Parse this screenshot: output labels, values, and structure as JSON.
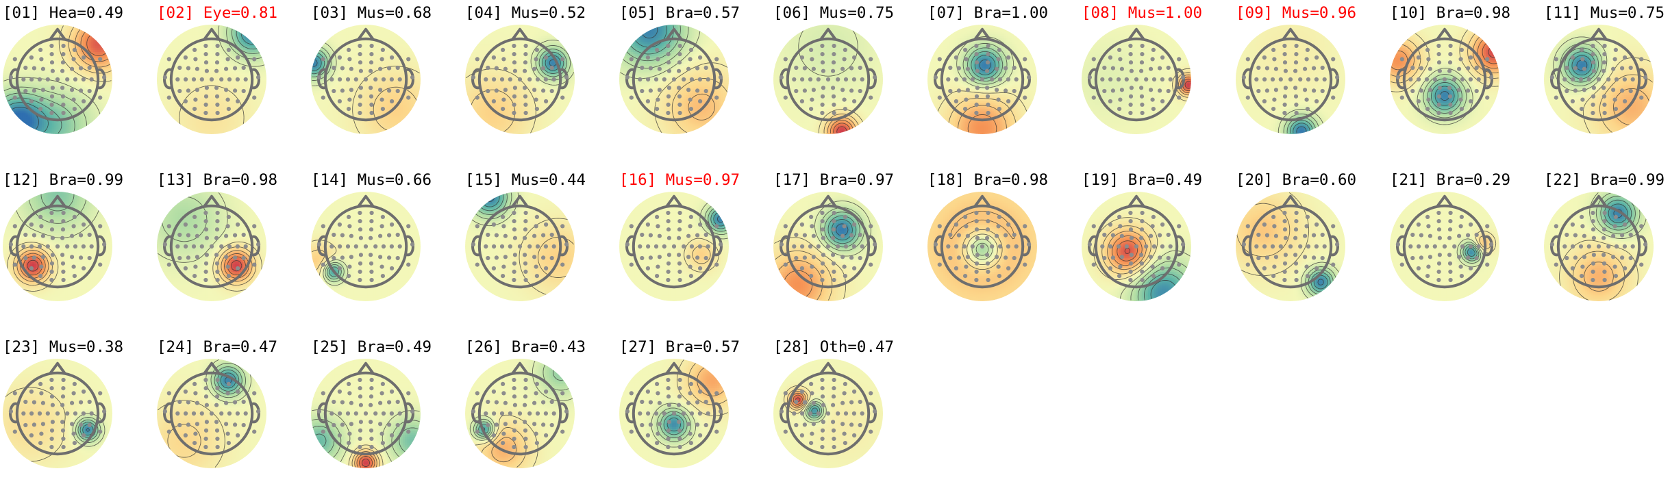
{
  "colors": {
    "title_default": "#000000",
    "title_flagged": "#ff0000",
    "colormap": [
      "#2f6fb0",
      "#5ab3a6",
      "#b3dea5",
      "#f3f7b9",
      "#fcd68a",
      "#f58f52",
      "#c9304a"
    ]
  },
  "chart_data": {
    "type": "topomap-grid",
    "series": [
      {
        "index": "01",
        "label": "Hea",
        "value": 0.49,
        "title": "[01] Hea=0.49",
        "flagged": false,
        "blobs": [
          {
            "sign": 1,
            "x": 0.75,
            "y": -0.65,
            "s": 0.35,
            "a": 0.85
          },
          {
            "sign": -1,
            "x": -0.75,
            "y": 0.75,
            "s": 0.35,
            "a": 0.95
          },
          {
            "sign": -1,
            "x": 0.0,
            "y": 0.85,
            "s": 0.45,
            "a": 0.5
          }
        ]
      },
      {
        "index": "02",
        "label": "Eye",
        "value": 0.81,
        "title": "[02] Eye=0.81",
        "flagged": true,
        "blobs": [
          {
            "sign": -1,
            "x": 0.75,
            "y": -0.85,
            "s": 0.3,
            "a": 0.9
          },
          {
            "sign": 1,
            "x": 0.0,
            "y": 0.7,
            "s": 0.5,
            "a": 0.2
          }
        ]
      },
      {
        "index": "03",
        "label": "Mus",
        "value": 0.68,
        "title": "[03] Mus=0.68",
        "flagged": false,
        "blobs": [
          {
            "sign": -1,
            "x": -0.95,
            "y": -0.3,
            "s": 0.2,
            "a": 0.9
          },
          {
            "sign": 1,
            "x": 0.55,
            "y": 0.55,
            "s": 0.5,
            "a": 0.35
          }
        ]
      },
      {
        "index": "04",
        "label": "Mus",
        "value": 0.52,
        "title": "[04] Mus=0.52",
        "flagged": false,
        "blobs": [
          {
            "sign": -1,
            "x": 0.6,
            "y": -0.3,
            "s": 0.2,
            "a": 0.9
          },
          {
            "sign": 1,
            "x": -0.5,
            "y": 0.6,
            "s": 0.5,
            "a": 0.35
          }
        ]
      },
      {
        "index": "05",
        "label": "Bra",
        "value": 0.57,
        "title": "[05] Bra=0.57",
        "flagged": false,
        "blobs": [
          {
            "sign": -1,
            "x": -0.45,
            "y": -0.9,
            "s": 0.45,
            "a": 0.9
          },
          {
            "sign": 1,
            "x": 0.5,
            "y": 0.5,
            "s": 0.5,
            "a": 0.45
          }
        ]
      },
      {
        "index": "06",
        "label": "Mus",
        "value": 0.75,
        "title": "[06] Mus=0.75",
        "flagged": false,
        "blobs": [
          {
            "sign": 1,
            "x": 0.25,
            "y": 0.95,
            "s": 0.2,
            "a": 0.95
          },
          {
            "sign": -1,
            "x": 0.0,
            "y": -0.6,
            "s": 0.6,
            "a": 0.15
          }
        ]
      },
      {
        "index": "07",
        "label": "Bra",
        "value": 1.0,
        "title": "[07] Bra=1.00",
        "flagged": false,
        "blobs": [
          {
            "sign": -1,
            "x": 0.05,
            "y": -0.25,
            "s": 0.25,
            "a": 0.95
          },
          {
            "sign": 1,
            "x": 0.0,
            "y": 0.9,
            "s": 0.45,
            "a": 0.65
          }
        ]
      },
      {
        "index": "08",
        "label": "Mus",
        "value": 1.0,
        "title": "[08] Mus=1.00",
        "flagged": true,
        "blobs": [
          {
            "sign": 1,
            "x": 0.95,
            "y": 0.1,
            "s": 0.14,
            "a": 0.95
          },
          {
            "sign": -1,
            "x": -0.5,
            "y": 0.0,
            "s": 0.5,
            "a": 0.1
          }
        ]
      },
      {
        "index": "09",
        "label": "Mus",
        "value": 0.96,
        "title": "[09] Mus=0.96",
        "flagged": true,
        "blobs": [
          {
            "sign": -1,
            "x": 0.2,
            "y": 0.95,
            "s": 0.2,
            "a": 0.95
          },
          {
            "sign": 1,
            "x": 0.0,
            "y": -0.5,
            "s": 0.6,
            "a": 0.1
          }
        ]
      },
      {
        "index": "10",
        "label": "Bra",
        "value": 0.98,
        "title": "[10] Bra=0.98",
        "flagged": false,
        "blobs": [
          {
            "sign": -1,
            "x": 0.0,
            "y": 0.3,
            "s": 0.25,
            "a": 0.9
          },
          {
            "sign": 1,
            "x": 0.9,
            "y": -0.5,
            "s": 0.3,
            "a": 0.9
          },
          {
            "sign": 1,
            "x": -0.85,
            "y": -0.35,
            "s": 0.3,
            "a": 0.65
          }
        ]
      },
      {
        "index": "11",
        "label": "Mus",
        "value": 0.75,
        "title": "[11] Mus=0.75",
        "flagged": false,
        "blobs": [
          {
            "sign": -1,
            "x": -0.3,
            "y": -0.25,
            "s": 0.25,
            "a": 0.95
          },
          {
            "sign": 1,
            "x": 0.6,
            "y": 0.5,
            "s": 0.5,
            "a": 0.5
          }
        ]
      },
      {
        "index": "12",
        "label": "Bra",
        "value": 0.99,
        "title": "[12] Bra=0.99",
        "flagged": false,
        "blobs": [
          {
            "sign": 1,
            "x": -0.45,
            "y": 0.35,
            "s": 0.22,
            "a": 0.95
          },
          {
            "sign": -1,
            "x": 0.0,
            "y": -0.95,
            "s": 0.45,
            "a": 0.5
          }
        ]
      },
      {
        "index": "13",
        "label": "Bra",
        "value": 0.98,
        "title": "[13] Bra=0.98",
        "flagged": false,
        "blobs": [
          {
            "sign": 1,
            "x": 0.45,
            "y": 0.35,
            "s": 0.22,
            "a": 0.95
          },
          {
            "sign": -1,
            "x": -0.5,
            "y": -0.5,
            "s": 0.5,
            "a": 0.35
          }
        ]
      },
      {
        "index": "14",
        "label": "Mus",
        "value": 0.66,
        "title": "[14] Mus=0.66",
        "flagged": false,
        "blobs": [
          {
            "sign": -1,
            "x": -0.6,
            "y": 0.45,
            "s": 0.14,
            "a": 0.9
          },
          {
            "sign": 1,
            "x": -0.85,
            "y": 0.3,
            "s": 0.25,
            "a": 0.4
          }
        ]
      },
      {
        "index": "15",
        "label": "Mus",
        "value": 0.44,
        "title": "[15] Mus=0.44",
        "flagged": false,
        "blobs": [
          {
            "sign": -1,
            "x": -0.55,
            "y": -0.9,
            "s": 0.25,
            "a": 0.9
          },
          {
            "sign": 1,
            "x": 0.7,
            "y": 0.2,
            "s": 0.45,
            "a": 0.35
          }
        ]
      },
      {
        "index": "16",
        "label": "Mus",
        "value": 0.97,
        "title": "[16] Mus=0.97",
        "flagged": true,
        "blobs": [
          {
            "sign": -1,
            "x": 0.85,
            "y": -0.5,
            "s": 0.18,
            "a": 0.9
          },
          {
            "sign": 1,
            "x": 0.5,
            "y": 0.15,
            "s": 0.2,
            "a": 0.35
          }
        ]
      },
      {
        "index": "17",
        "label": "Bra",
        "value": 0.97,
        "title": "[17] Bra=0.97",
        "flagged": false,
        "blobs": [
          {
            "sign": -1,
            "x": 0.25,
            "y": -0.3,
            "s": 0.25,
            "a": 0.95
          },
          {
            "sign": 1,
            "x": -0.55,
            "y": 0.7,
            "s": 0.45,
            "a": 0.65
          }
        ]
      },
      {
        "index": "18",
        "label": "Bra",
        "value": 0.98,
        "title": "[18] Bra=0.98",
        "flagged": false,
        "blobs": [
          {
            "sign": -1,
            "x": 0.0,
            "y": 0.05,
            "s": 0.22,
            "a": 0.85
          },
          {
            "sign": 1,
            "x": 0.0,
            "y": 0.0,
            "s": 1.0,
            "a": 0.5
          }
        ]
      },
      {
        "index": "19",
        "label": "Bra",
        "value": 0.49,
        "title": "[19] Bra=0.49",
        "flagged": false,
        "blobs": [
          {
            "sign": 1,
            "x": -0.15,
            "y": 0.1,
            "s": 0.3,
            "a": 0.9
          },
          {
            "sign": -1,
            "x": 0.5,
            "y": 0.85,
            "s": 0.4,
            "a": 0.85
          }
        ]
      },
      {
        "index": "20",
        "label": "Bra",
        "value": 0.6,
        "title": "[20] Bra=0.60",
        "flagged": false,
        "blobs": [
          {
            "sign": -1,
            "x": 0.55,
            "y": 0.65,
            "s": 0.18,
            "a": 0.9
          },
          {
            "sign": 1,
            "x": -0.5,
            "y": -0.3,
            "s": 0.5,
            "a": 0.4
          }
        ]
      },
      {
        "index": "21",
        "label": "Bra",
        "value": 0.29,
        "title": "[21] Bra=0.29",
        "flagged": false,
        "blobs": [
          {
            "sign": -1,
            "x": 0.5,
            "y": 0.1,
            "s": 0.13,
            "a": 0.9
          },
          {
            "sign": 1,
            "x": 0.7,
            "y": -0.05,
            "s": 0.13,
            "a": 0.5
          }
        ]
      },
      {
        "index": "22",
        "label": "Bra",
        "value": 0.99,
        "title": "[22] Bra=0.99",
        "flagged": false,
        "blobs": [
          {
            "sign": -1,
            "x": 0.35,
            "y": -0.6,
            "s": 0.25,
            "a": 0.9
          },
          {
            "sign": 1,
            "x": 0.0,
            "y": 0.55,
            "s": 0.4,
            "a": 0.5
          }
        ]
      },
      {
        "index": "23",
        "label": "Mus",
        "value": 0.38,
        "title": "[23] Mus=0.38",
        "flagged": false,
        "blobs": [
          {
            "sign": -1,
            "x": 0.55,
            "y": 0.3,
            "s": 0.15,
            "a": 0.9
          },
          {
            "sign": 1,
            "x": -0.5,
            "y": 0.2,
            "s": 0.5,
            "a": 0.25
          }
        ]
      },
      {
        "index": "24",
        "label": "Bra",
        "value": 0.47,
        "title": "[24] Bra=0.47",
        "flagged": false,
        "blobs": [
          {
            "sign": -1,
            "x": 0.3,
            "y": -0.6,
            "s": 0.2,
            "a": 0.9
          },
          {
            "sign": 1,
            "x": -0.5,
            "y": 0.5,
            "s": 0.5,
            "a": 0.3
          }
        ]
      },
      {
        "index": "25",
        "label": "Bra",
        "value": 0.49,
        "title": "[25] Bra=0.49",
        "flagged": false,
        "blobs": [
          {
            "sign": 1,
            "x": 0.0,
            "y": 0.9,
            "s": 0.16,
            "a": 0.95
          },
          {
            "sign": -1,
            "x": -0.85,
            "y": 0.5,
            "s": 0.3,
            "a": 0.6
          },
          {
            "sign": -1,
            "x": 0.85,
            "y": 0.5,
            "s": 0.3,
            "a": 0.55
          }
        ]
      },
      {
        "index": "26",
        "label": "Bra",
        "value": 0.43,
        "title": "[26] Bra=0.43",
        "flagged": false,
        "blobs": [
          {
            "sign": -1,
            "x": -0.65,
            "y": 0.3,
            "s": 0.14,
            "a": 0.9
          },
          {
            "sign": 1,
            "x": -0.3,
            "y": 0.65,
            "s": 0.35,
            "a": 0.5
          },
          {
            "sign": -1,
            "x": 0.75,
            "y": -0.75,
            "s": 0.3,
            "a": 0.45
          }
        ]
      },
      {
        "index": "27",
        "label": "Bra",
        "value": 0.57,
        "title": "[27] Bra=0.57",
        "flagged": false,
        "blobs": [
          {
            "sign": -1,
            "x": 0.0,
            "y": 0.2,
            "s": 0.2,
            "a": 0.85
          },
          {
            "sign": 1,
            "x": 0.7,
            "y": -0.6,
            "s": 0.35,
            "a": 0.55
          }
        ]
      },
      {
        "index": "28",
        "label": "Oth",
        "value": 0.47,
        "title": "[28] Oth=0.47",
        "flagged": false,
        "blobs": [
          {
            "sign": 1,
            "x": -0.55,
            "y": -0.25,
            "s": 0.12,
            "a": 0.9
          },
          {
            "sign": -1,
            "x": -0.25,
            "y": -0.05,
            "s": 0.12,
            "a": 0.85
          },
          {
            "sign": 1,
            "x": 0.3,
            "y": 0.2,
            "s": 0.5,
            "a": 0.1
          }
        ]
      }
    ]
  }
}
